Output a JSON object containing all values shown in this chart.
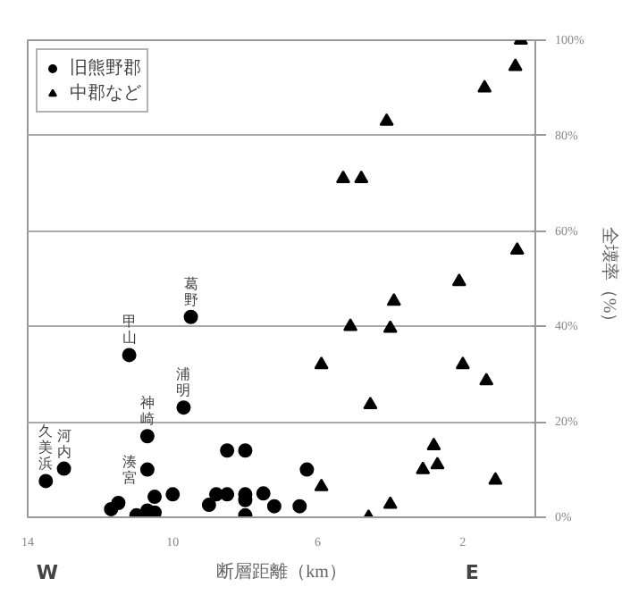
{
  "chart_data": {
    "type": "scatter",
    "xlabel": "断層距離（km）",
    "ylabel": "全壊率（%）",
    "xlim": [
      14,
      0
    ],
    "xticks": [
      14,
      10,
      6,
      2
    ],
    "ylim": [
      0,
      100
    ],
    "yticks": [
      {
        "value": 0,
        "label": "0%"
      },
      {
        "value": 20,
        "label": "20%"
      },
      {
        "value": 40,
        "label": "40%"
      },
      {
        "value": 60,
        "label": "60%"
      },
      {
        "value": 80,
        "label": "80%"
      },
      {
        "value": 100,
        "label": "100%"
      }
    ],
    "grid": "y",
    "legend": "top left",
    "tick_labels": "xy",
    "series": [
      {
        "name": "旧熊野郡",
        "color": "#000000",
        "marker": "circle",
        "x": [
          13.5,
          13.0,
          11.2,
          9.5,
          9.7,
          10.7,
          10.7,
          8.5,
          8.0,
          6.3,
          11.7,
          11.5,
          11.0,
          10.7,
          10.5,
          10.5,
          10.0,
          9.0,
          8.8,
          8.5,
          8.0,
          8.0,
          8.0,
          7.5,
          7.2,
          6.5
        ],
        "values": [
          7.6,
          10.2,
          34,
          42,
          23,
          17,
          10,
          14,
          14,
          10,
          1.7,
          3,
          0.4,
          1.4,
          1,
          4.3,
          4.8,
          2.6,
          4.8,
          4.8,
          4.8,
          3.6,
          0.4,
          5,
          2.3,
          2.3
        ]
      },
      {
        "name": "中郡など",
        "color": "#000000",
        "marker": "triangle",
        "x": [
          0.4,
          0.55,
          1.4,
          4.1,
          5.3,
          4.8,
          0.5,
          2.1,
          3.9,
          5.1,
          4.0,
          5.9,
          2.0,
          1.35,
          4.55,
          2.8,
          3.1,
          2.7,
          1.1,
          5.9,
          4.0,
          4.6
        ],
        "values": [
          100,
          94.5,
          90,
          83,
          71,
          71,
          56,
          49.4,
          45.3,
          40,
          39.6,
          32,
          32,
          28.6,
          23.6,
          15,
          10,
          11,
          7.8,
          6.4,
          2.7,
          0
        ]
      }
    ],
    "annotations": [
      "W",
      "E",
      {
        "text": "久美浜",
        "x": 13.5,
        "y": 7.6
      },
      {
        "text": "河内",
        "x": 13.0,
        "y": 10.2
      },
      {
        "text": "甲山",
        "x": 11.2,
        "y": 34
      },
      {
        "text": "葛野",
        "x": 9.5,
        "y": 42
      },
      {
        "text": "浦明",
        "x": 9.7,
        "y": 23
      },
      {
        "text": "神崎",
        "x": 10.7,
        "y": 17
      },
      {
        "text": "湊宮",
        "x": 10.7,
        "y": 10
      }
    ]
  }
}
